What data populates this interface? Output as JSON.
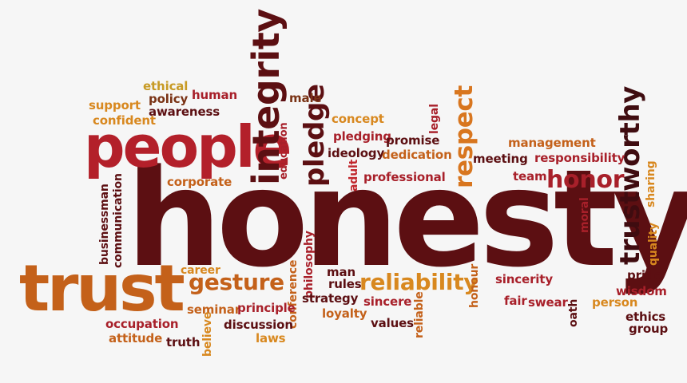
{
  "palette": {
    "background": "#f6f6f6",
    "dark_maroon": "#5c0f12",
    "crimson": "#a8202a",
    "red": "#c1272d",
    "orange": "#c4611a",
    "amber": "#d8881f",
    "gold": "#c79a24",
    "brown": "#7a3315"
  },
  "words": [
    {
      "id": "honesty",
      "text": "honesty",
      "color": "#5c0f12"
    },
    {
      "id": "people",
      "text": "people",
      "color": "#b3202a"
    },
    {
      "id": "trust",
      "text": "trust",
      "color": "#c4611a"
    },
    {
      "id": "integrity",
      "text": "integrity",
      "color": "#5c0f12"
    },
    {
      "id": "trustworthy",
      "text": "trustworthy",
      "color": "#3f0c10"
    },
    {
      "id": "respect",
      "text": "respect",
      "color": "#d8761f"
    },
    {
      "id": "pledge",
      "text": "pledge",
      "color": "#5c0f12"
    },
    {
      "id": "honor",
      "text": "honor",
      "color": "#a8202a"
    },
    {
      "id": "reliability",
      "text": "reliability",
      "color": "#d8881f"
    },
    {
      "id": "gesture",
      "text": "gesture",
      "color": "#c4611a"
    },
    {
      "id": "ethical",
      "text": "ethical",
      "color": "#c79a24"
    },
    {
      "id": "human",
      "text": "human",
      "color": "#a8202a"
    },
    {
      "id": "policy",
      "text": "policy",
      "color": "#7a3315"
    },
    {
      "id": "support",
      "text": "support",
      "color": "#d8881f"
    },
    {
      "id": "awareness",
      "text": "awareness",
      "color": "#5c0f12"
    },
    {
      "id": "confident",
      "text": "confident",
      "color": "#d8881f"
    },
    {
      "id": "male",
      "text": "male",
      "color": "#7a3315"
    },
    {
      "id": "concept",
      "text": "concept",
      "color": "#d8881f"
    },
    {
      "id": "pledging",
      "text": "pledging",
      "color": "#a8202a"
    },
    {
      "id": "promise",
      "text": "promise",
      "color": "#5c0f12"
    },
    {
      "id": "ideology",
      "text": "ideology",
      "color": "#5c0f12"
    },
    {
      "id": "dedication",
      "text": "dedication",
      "color": "#c4611a"
    },
    {
      "id": "professional",
      "text": "professional",
      "color": "#a8202a"
    },
    {
      "id": "education",
      "text": "education",
      "color": "#a8202a"
    },
    {
      "id": "legal",
      "text": "legal",
      "color": "#a8202a"
    },
    {
      "id": "adult",
      "text": "adult",
      "color": "#c1272d"
    },
    {
      "id": "management",
      "text": "management",
      "color": "#c4611a"
    },
    {
      "id": "meeting",
      "text": "meeting",
      "color": "#5c0f12"
    },
    {
      "id": "responsibility",
      "text": "responsibility",
      "color": "#a8202a"
    },
    {
      "id": "team",
      "text": "team",
      "color": "#a8202a"
    },
    {
      "id": "sharing",
      "text": "sharing",
      "color": "#d8881f"
    },
    {
      "id": "corporate",
      "text": "corporate",
      "color": "#c4611a"
    },
    {
      "id": "businessman",
      "text": "businessman",
      "color": "#5c0f12"
    },
    {
      "id": "communication",
      "text": "communication",
      "color": "#5c0f12"
    },
    {
      "id": "moral",
      "text": "moral",
      "color": "#a8202a"
    },
    {
      "id": "quality",
      "text": "quality",
      "color": "#d8881f"
    },
    {
      "id": "career",
      "text": "career",
      "color": "#d8881f"
    },
    {
      "id": "philosophy",
      "text": "philosophy",
      "color": "#a8202a"
    },
    {
      "id": "conference",
      "text": "conference",
      "color": "#c4611a"
    },
    {
      "id": "man",
      "text": "man",
      "color": "#5c0f12"
    },
    {
      "id": "rules",
      "text": "rules",
      "color": "#5c0f12"
    },
    {
      "id": "strategy",
      "text": "strategy",
      "color": "#5c0f12"
    },
    {
      "id": "sincere",
      "text": "sincere",
      "color": "#a8202a"
    },
    {
      "id": "honour",
      "text": "honour",
      "color": "#c4611a"
    },
    {
      "id": "sincerity",
      "text": "sincerity",
      "color": "#a8202a"
    },
    {
      "id": "pride",
      "text": "pride",
      "color": "#5c0f12"
    },
    {
      "id": "wisdom",
      "text": "wisdom",
      "color": "#a8202a"
    },
    {
      "id": "fair",
      "text": "fair",
      "color": "#a8202a"
    },
    {
      "id": "swear",
      "text": "swear",
      "color": "#a8202a"
    },
    {
      "id": "person",
      "text": "person",
      "color": "#d8881f"
    },
    {
      "id": "oath",
      "text": "oath",
      "color": "#5c0f12"
    },
    {
      "id": "ethics",
      "text": "ethics",
      "color": "#5c0f12"
    },
    {
      "id": "group",
      "text": "group",
      "color": "#5c0f12"
    },
    {
      "id": "seminar",
      "text": "seminar",
      "color": "#c4611a"
    },
    {
      "id": "principle",
      "text": "principle",
      "color": "#a8202a"
    },
    {
      "id": "loyalty",
      "text": "loyalty",
      "color": "#c4611a"
    },
    {
      "id": "values",
      "text": "values",
      "color": "#5c0f12"
    },
    {
      "id": "reliable",
      "text": "reliable",
      "color": "#c4611a"
    },
    {
      "id": "occupation",
      "text": "occupation",
      "color": "#a8202a"
    },
    {
      "id": "believe",
      "text": "believe",
      "color": "#d8881f"
    },
    {
      "id": "discussion",
      "text": "discussion",
      "color": "#5c0f12"
    },
    {
      "id": "attitude",
      "text": "attitude",
      "color": "#c4611a"
    },
    {
      "id": "truth",
      "text": "truth",
      "color": "#5c0f12"
    },
    {
      "id": "laws",
      "text": "laws",
      "color": "#d8881f"
    }
  ]
}
